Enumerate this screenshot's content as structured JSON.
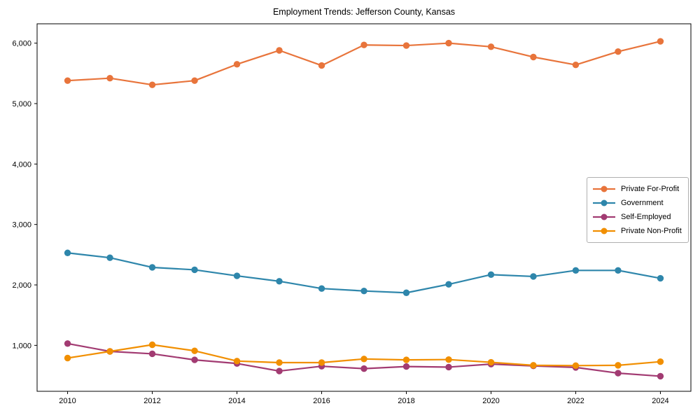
{
  "title": "Employment Trends: Jefferson County, Kansas",
  "chart_data": {
    "type": "line",
    "title": "Employment Trends: Jefferson County, Kansas",
    "xlabel": "",
    "ylabel": "",
    "x": [
      2010,
      2011,
      2012,
      2013,
      2014,
      2015,
      2016,
      2017,
      2018,
      2019,
      2020,
      2021,
      2022,
      2023,
      2024
    ],
    "series": [
      {
        "name": "Private For-Profit",
        "color": "#E8743B",
        "values": [
          5380,
          5420,
          5310,
          5380,
          5650,
          5880,
          5630,
          5970,
          5960,
          6000,
          5940,
          5770,
          5640,
          5860,
          6030
        ]
      },
      {
        "name": "Government",
        "color": "#2E86AB",
        "values": [
          2530,
          2450,
          2290,
          2250,
          2150,
          2060,
          1940,
          1900,
          1870,
          2010,
          2170,
          2140,
          2240,
          2240,
          2110
        ]
      },
      {
        "name": "Self-Employed",
        "color": "#A23B72",
        "values": [
          1030,
          900,
          860,
          760,
          700,
          575,
          655,
          615,
          650,
          640,
          690,
          660,
          635,
          540,
          490
        ]
      },
      {
        "name": "Private Non-Profit",
        "color": "#F18F01",
        "values": [
          790,
          900,
          1010,
          910,
          740,
          715,
          715,
          775,
          760,
          765,
          720,
          670,
          665,
          670,
          730
        ]
      }
    ],
    "xticks": [
      2010,
      2012,
      2014,
      2016,
      2018,
      2020,
      2022,
      2024
    ],
    "yticks": [
      1000,
      2000,
      3000,
      4000,
      5000,
      6000
    ],
    "ytick_labels": [
      "1,000",
      "2,000",
      "3,000",
      "4,000",
      "5,000",
      "6,000"
    ],
    "xlim": [
      2009.28,
      2024.72
    ],
    "ylim": [
      240,
      6320
    ],
    "grid": false,
    "legend_position": "center-right",
    "marker": "circle",
    "axis_color": "#000000"
  }
}
